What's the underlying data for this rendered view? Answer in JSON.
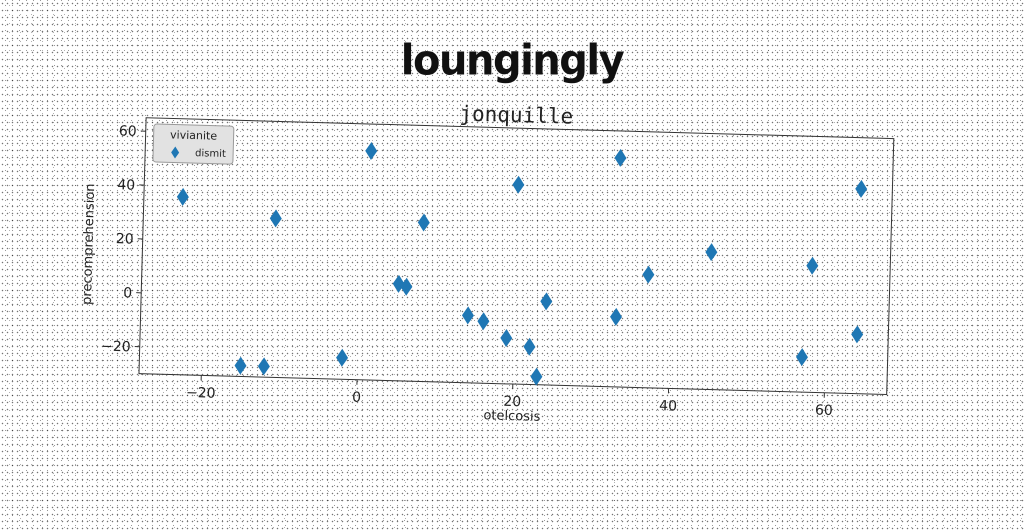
{
  "header": {
    "title": "loungingly"
  },
  "chart_data": {
    "type": "scatter",
    "title": "jonquille",
    "xlabel": "otelcosis",
    "ylabel": "precomprehension",
    "xlim": [
      -28,
      68
    ],
    "ylim": [
      -30,
      65
    ],
    "xticks": [
      -20,
      0,
      20,
      40,
      60
    ],
    "yticks": [
      -20,
      0,
      20,
      40,
      60
    ],
    "grid": false,
    "legend": {
      "title": "vivianite",
      "placement": "top-left"
    },
    "series": [
      {
        "name": "dismit",
        "color": "#1f77b4",
        "marker": "diamond",
        "points": [
          [
            -23,
            36
          ],
          [
            -15,
            -26
          ],
          [
            -12,
            -26
          ],
          [
            -11,
            29
          ],
          [
            -2,
            -22
          ],
          [
            1,
            55
          ],
          [
            5,
            6
          ],
          [
            6,
            5
          ],
          [
            8,
            29
          ],
          [
            14,
            -5
          ],
          [
            16,
            -7
          ],
          [
            19,
            -13
          ],
          [
            20,
            44
          ],
          [
            22,
            -16
          ],
          [
            23,
            -27
          ],
          [
            24,
            1
          ],
          [
            33,
            55
          ],
          [
            33,
            -4
          ],
          [
            37,
            12
          ],
          [
            45,
            21
          ],
          [
            57,
            -17
          ],
          [
            58,
            17
          ],
          [
            64,
            -8
          ],
          [
            64,
            46
          ]
        ]
      }
    ]
  }
}
